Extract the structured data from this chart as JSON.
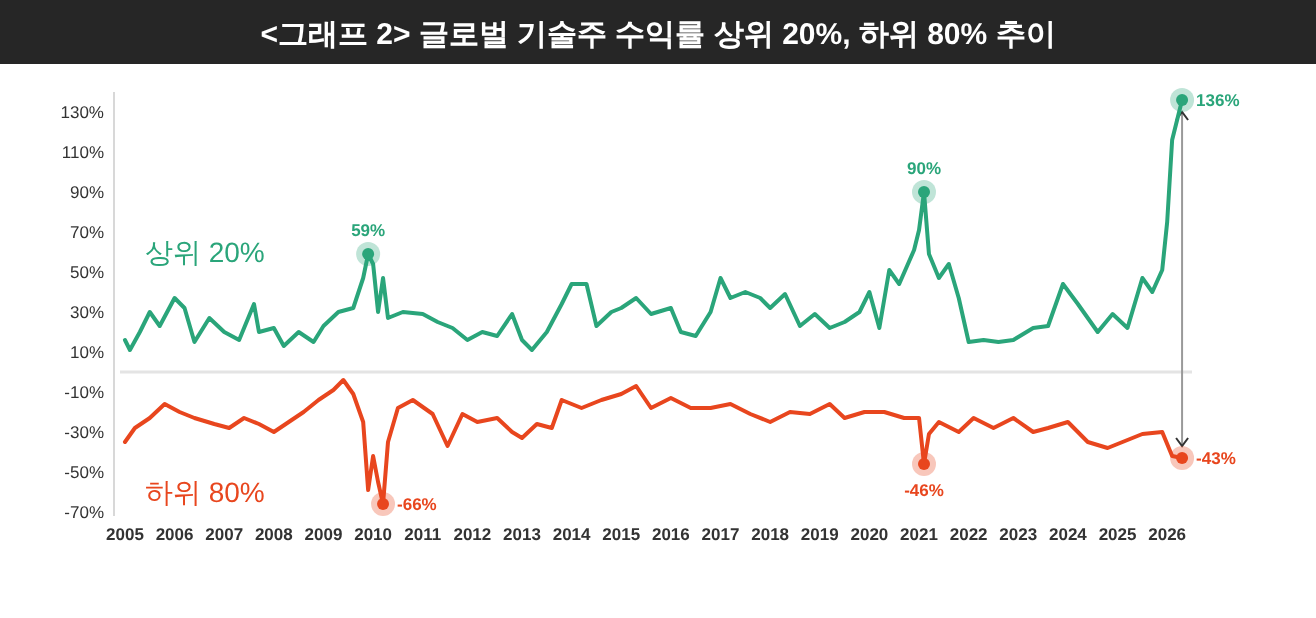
{
  "chart_data": {
    "type": "line",
    "title": "<그래프 2> 글로벌 기술주 수익률 상위 20%, 하위 80% 추이",
    "xlim": [
      2004.9,
      2026.5
    ],
    "xticks": [
      2005,
      2006,
      2007,
      2008,
      2009,
      2010,
      2011,
      2012,
      2013,
      2014,
      2015,
      2016,
      2017,
      2018,
      2019,
      2020,
      2021,
      2022,
      2023,
      2024,
      2025,
      2026
    ],
    "ylim": [
      -72,
      140
    ],
    "yticks": [
      {
        "value": 130,
        "label": "130%"
      },
      {
        "value": 110,
        "label": "110%"
      },
      {
        "value": 90,
        "label": "90%"
      },
      {
        "value": 70,
        "label": "70%"
      },
      {
        "value": 50,
        "label": "50%"
      },
      {
        "value": 30,
        "label": "30%"
      },
      {
        "value": 10,
        "label": "10%"
      },
      {
        "value": -10,
        "label": "-10%"
      },
      {
        "value": -30,
        "label": "-30%"
      },
      {
        "value": -50,
        "label": "-50%"
      },
      {
        "value": -70,
        "label": "-70%"
      }
    ],
    "grid": false,
    "ref_lines": [
      {
        "axis": "y",
        "value": 0,
        "color": "#e4e4e4"
      }
    ],
    "series": [
      {
        "name": "상위 20%",
        "color": "#2aa57a",
        "x": [
          2005.0,
          2005.1,
          2005.3,
          2005.5,
          2005.7,
          2006.0,
          2006.2,
          2006.4,
          2006.7,
          2007.0,
          2007.3,
          2007.6,
          2007.7,
          2008.0,
          2008.2,
          2008.5,
          2008.8,
          2009.0,
          2009.3,
          2009.6,
          2009.8,
          2009.9,
          2010.0,
          2010.1,
          2010.2,
          2010.3,
          2010.6,
          2011.0,
          2011.3,
          2011.6,
          2011.9,
          2012.2,
          2012.5,
          2012.8,
          2013.0,
          2013.2,
          2013.5,
          2013.8,
          2014.0,
          2014.3,
          2014.5,
          2014.8,
          2015.0,
          2015.3,
          2015.6,
          2016.0,
          2016.2,
          2016.5,
          2016.8,
          2017.0,
          2017.2,
          2017.5,
          2017.8,
          2018.0,
          2018.3,
          2018.6,
          2018.9,
          2019.2,
          2019.5,
          2019.8,
          2020.0,
          2020.2,
          2020.4,
          2020.6,
          2020.9,
          2021.0,
          2021.1,
          2021.2,
          2021.4,
          2021.6,
          2021.8,
          2022.0,
          2022.3,
          2022.6,
          2022.9,
          2023.3,
          2023.6,
          2023.9,
          2024.2,
          2024.6,
          2024.9,
          2025.2,
          2025.5,
          2025.7,
          2025.9,
          2026.0,
          2026.1,
          2026.3
        ],
        "values": [
          16,
          11,
          20,
          30,
          23,
          37,
          32,
          15,
          27,
          20,
          16,
          34,
          20,
          22,
          13,
          20,
          15,
          23,
          30,
          32,
          47,
          59,
          54,
          30,
          47,
          27,
          30,
          29,
          25,
          22,
          16,
          20,
          18,
          29,
          16,
          11,
          20,
          34,
          44,
          44,
          23,
          30,
          32,
          37,
          29,
          32,
          20,
          18,
          30,
          47,
          37,
          40,
          37,
          32,
          39,
          23,
          29,
          22,
          25,
          30,
          40,
          22,
          51,
          44,
          61,
          71,
          90,
          59,
          47,
          54,
          37,
          15,
          16,
          15,
          16,
          22,
          23,
          44,
          34,
          20,
          29,
          22,
          47,
          40,
          51,
          75,
          116,
          136
        ]
      },
      {
        "name": "하위 80%",
        "color": "#e8461e",
        "x": [
          2005.0,
          2005.2,
          2005.5,
          2005.8,
          2006.1,
          2006.4,
          2006.8,
          2007.1,
          2007.4,
          2007.7,
          2008.0,
          2008.3,
          2008.6,
          2008.9,
          2009.2,
          2009.4,
          2009.6,
          2009.8,
          2009.9,
          2010.0,
          2010.1,
          2010.2,
          2010.3,
          2010.5,
          2010.8,
          2011.2,
          2011.5,
          2011.8,
          2012.1,
          2012.5,
          2012.8,
          2013.0,
          2013.3,
          2013.6,
          2013.8,
          2014.2,
          2014.6,
          2015.0,
          2015.3,
          2015.6,
          2016.0,
          2016.4,
          2016.8,
          2017.2,
          2017.6,
          2018.0,
          2018.4,
          2018.8,
          2019.2,
          2019.5,
          2019.9,
          2020.3,
          2020.7,
          2021.0,
          2021.1,
          2021.2,
          2021.4,
          2021.8,
          2022.1,
          2022.5,
          2022.9,
          2023.3,
          2023.6,
          2024.0,
          2024.4,
          2024.8,
          2025.1,
          2025.5,
          2025.9,
          2026.1,
          2026.3
        ],
        "values": [
          -35,
          -28,
          -23,
          -16,
          -20,
          -23,
          -26,
          -28,
          -23,
          -26,
          -30,
          -25,
          -20,
          -14,
          -9,
          -4,
          -11,
          -25,
          -59,
          -42,
          -55,
          -66,
          -35,
          -18,
          -14,
          -21,
          -37,
          -21,
          -25,
          -23,
          -30,
          -33,
          -26,
          -28,
          -14,
          -18,
          -14,
          -11,
          -7,
          -18,
          -13,
          -18,
          -18,
          -16,
          -21,
          -25,
          -20,
          -21,
          -16,
          -23,
          -20,
          -20,
          -23,
          -23,
          -46,
          -31,
          -25,
          -30,
          -23,
          -28,
          -23,
          -30,
          -28,
          -25,
          -35,
          -38,
          -35,
          -31,
          -30,
          -42,
          -43
        ]
      }
    ],
    "annotations": [
      {
        "text": "59%",
        "x": 2009.9,
        "y": 59
      },
      {
        "text": "90%",
        "x": 2021.1,
        "y": 90
      },
      {
        "text": "136%",
        "x": 2026.3,
        "y": 136
      },
      {
        "text": "-66%",
        "x": 2010.2,
        "y": -66
      },
      {
        "text": "-46%",
        "x": 2021.1,
        "y": -46
      },
      {
        "text": "-43%",
        "x": 2026.3,
        "y": -43
      }
    ]
  }
}
